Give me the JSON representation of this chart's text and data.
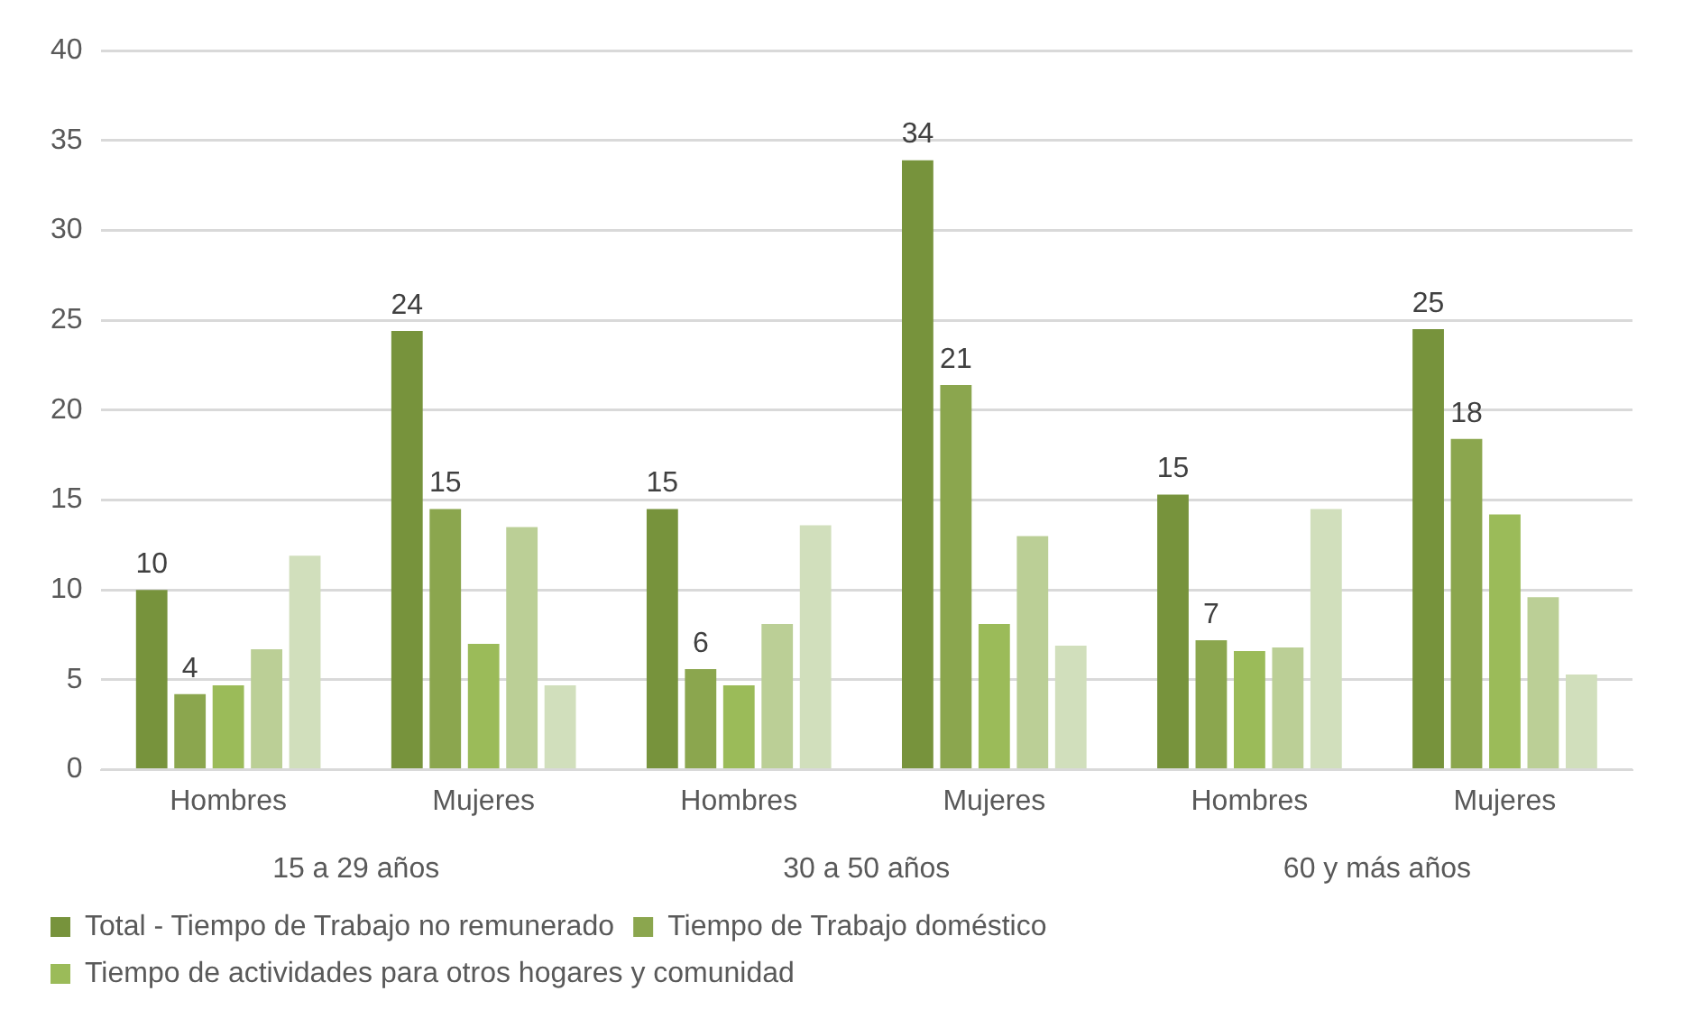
{
  "chart_data": {
    "type": "bar",
    "categories": [
      "Hombres",
      "Mujeres",
      "Hombres",
      "Mujeres",
      "Hombres",
      "Mujeres"
    ],
    "annotations": [
      "15 a 29 años",
      "30 a 50 años",
      "60 y más años"
    ],
    "series": [
      {
        "name": "Total - Tiempo de Trabajo no remunerado",
        "color": "#77933c",
        "values": [
          10.0,
          24.4,
          14.5,
          33.9,
          15.3,
          24.5
        ],
        "value_labels": [
          "10",
          "24",
          "15",
          "34",
          "15",
          "25"
        ]
      },
      {
        "name": "Tiempo de Trabajo doméstico",
        "color": "#8ba64e",
        "values": [
          4.2,
          14.5,
          5.6,
          21.4,
          7.2,
          18.4
        ],
        "value_labels": [
          "4",
          "15",
          "6",
          "21",
          "7",
          "18"
        ]
      },
      {
        "name": "Tiempo de actividades para otros hogares y comunidad",
        "color": "#9bbb59",
        "values": [
          4.7,
          7.0,
          4.7,
          8.1,
          6.6,
          14.2
        ]
      },
      {
        "color": "#bbcf96",
        "values": [
          6.7,
          13.5,
          8.1,
          13.0,
          6.8,
          9.6
        ]
      },
      {
        "color": "#d1dfbc",
        "values": [
          11.9,
          4.7,
          13.6,
          6.9,
          14.5,
          5.3
        ]
      }
    ],
    "ylim": [
      0,
      40
    ],
    "yticks": [
      0,
      5,
      10,
      15,
      20,
      25,
      30,
      35,
      40
    ],
    "grid": "y",
    "legend": "bottom"
  }
}
